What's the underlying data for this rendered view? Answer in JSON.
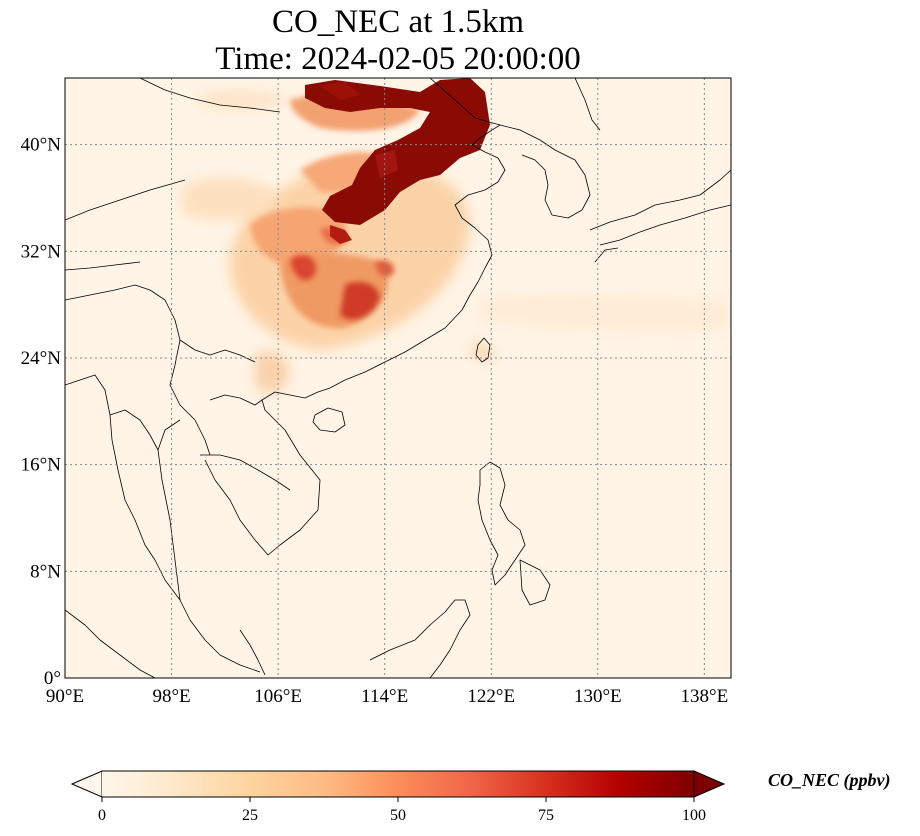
{
  "title": {
    "line1": "CO_NEC at 1.5km",
    "line2": "Time: 2024-02-05 20:00:00"
  },
  "map": {
    "lon_range": [
      90,
      140
    ],
    "lat_range": [
      0,
      45
    ],
    "gridlines": true,
    "x_ticks": [
      {
        "value": 90,
        "label": "90°E"
      },
      {
        "value": 98,
        "label": "98°E"
      },
      {
        "value": 106,
        "label": "106°E"
      },
      {
        "value": 114,
        "label": "114°E"
      },
      {
        "value": 122,
        "label": "122°E"
      },
      {
        "value": 130,
        "label": "130°E"
      },
      {
        "value": 138,
        "label": "138°E"
      }
    ],
    "y_ticks": [
      {
        "value": 0,
        "label": "0°"
      },
      {
        "value": 8,
        "label": "8°N"
      },
      {
        "value": 16,
        "label": "16°N"
      },
      {
        "value": 24,
        "label": "24°N"
      },
      {
        "value": 32,
        "label": "32°N"
      },
      {
        "value": 40,
        "label": "40°N"
      }
    ]
  },
  "colorbar": {
    "label": "CO_NEC (ppbv)",
    "min": 0,
    "max": 100,
    "colormap": "OrRd",
    "extend": "both",
    "ticks": [
      {
        "value": 0,
        "label": "0"
      },
      {
        "value": 25,
        "label": "25"
      },
      {
        "value": 50,
        "label": "50"
      },
      {
        "value": 75,
        "label": "75"
      },
      {
        "value": 100,
        "label": "100"
      }
    ],
    "colors": [
      "#fff7ec",
      "#fee8c8",
      "#fdd49e",
      "#fdbb84",
      "#fc8d59",
      "#ef6548",
      "#d7301f",
      "#b30000",
      "#7f0000"
    ]
  }
}
